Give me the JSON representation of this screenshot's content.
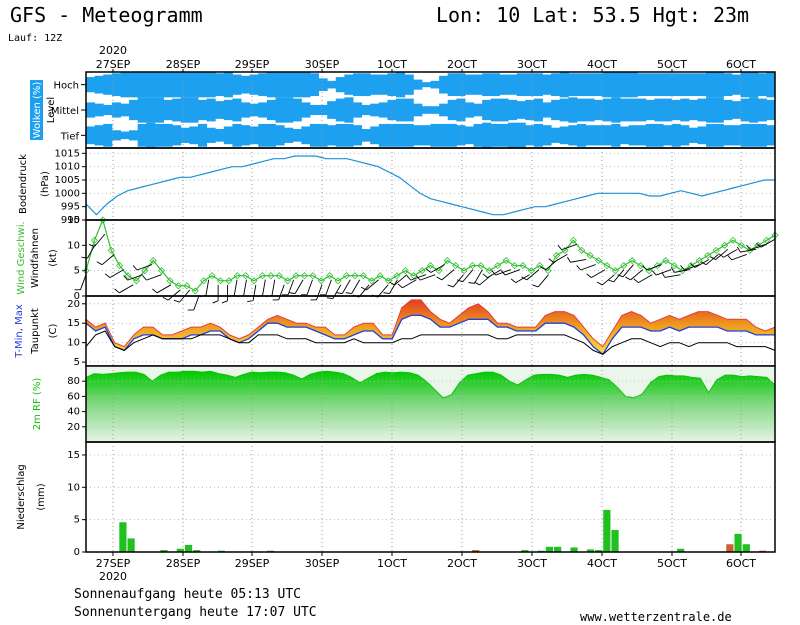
{
  "header": {
    "title": "GFS - Meteogramm",
    "location": "Lon: 10 Lat: 53.5 Hgt: 23m",
    "run": "Lauf: 12Z"
  },
  "footer": {
    "sunrise": "Sonnenaufgang heute 05:13 UTC",
    "sunset": "Sonnenuntergang heute 17:07 UTC",
    "site": "www.wetterzentrale.de"
  },
  "time_axis": {
    "year": "2020",
    "dates": [
      "27SEP",
      "28SEP",
      "29SEP",
      "30SEP",
      "1OCT",
      "2OCT",
      "3OCT",
      "4OCT",
      "5OCT",
      "6OCT"
    ]
  },
  "colors": {
    "cloud": "#1ea0f0",
    "pressure": "#1e90d8",
    "wind": "#30c030",
    "tmax": "#e04040",
    "tmin": "#2040e0",
    "rh": "#10c010",
    "precip": "#20c020",
    "precip_conv": "#d06030"
  },
  "chart_data": [
    {
      "type": "heatmap",
      "panel": "clouds",
      "ylabel_main": "Wolken (%)",
      "ylabel_sub": "Level",
      "rows": [
        "Hoch",
        "Mittel",
        "Tief"
      ],
      "note": "cloud coverage per time step (0-1), 3-hourly",
      "hoch": [
        0.6,
        0.7,
        0.8,
        0.9,
        1,
        1,
        1,
        1,
        1,
        1,
        1,
        1,
        1,
        1,
        1,
        0.9,
        1,
        0.8,
        0.7,
        0.8,
        0.9,
        1,
        1,
        1,
        1,
        1,
        0.9,
        0.5,
        0.3,
        0.6,
        0.8,
        0.9,
        0.9,
        0.8,
        0.8,
        0.9,
        1,
        0.8,
        0.4,
        0.2,
        0.3,
        0.7,
        0.9,
        0.9,
        0.8,
        0.8,
        0.9,
        0.9,
        0.8,
        0.8,
        0.9,
        0.9,
        0.9,
        0.8,
        0.9,
        1,
        0.9,
        0.9,
        0.9,
        0.9,
        1,
        1,
        1,
        1,
        0.9,
        0.9,
        0.9,
        0.9,
        0.9,
        0.9,
        0.9,
        0.9,
        1,
        1,
        0.9,
        0.8,
        1,
        1,
        0.9,
        1
      ],
      "mittel": [
        0.6,
        0.5,
        0.4,
        0.6,
        0.5,
        0.8,
        1,
        1,
        1,
        0.8,
        0.9,
        1,
        1,
        0.8,
        0.9,
        0.7,
        0.8,
        0.9,
        0.6,
        0.5,
        0.6,
        0.8,
        1,
        1,
        0.9,
        0.6,
        0.4,
        0.4,
        0.7,
        0.9,
        1,
        0.6,
        0.4,
        0.5,
        0.6,
        0.8,
        0.9,
        0.9,
        0.5,
        0.3,
        0.3,
        0.5,
        0.8,
        0.9,
        0.6,
        0.5,
        0.8,
        0.9,
        0.9,
        0.8,
        0.7,
        0.8,
        0.9,
        0.6,
        0.8,
        0.9,
        1,
        0.9,
        0.9,
        0.8,
        0.9,
        1,
        0.9,
        0.9,
        0.9,
        0.8,
        0.9,
        0.9,
        0.8,
        0.9,
        0.8,
        0.9,
        1,
        1,
        0.8,
        0.7,
        0.9,
        1,
        0.9,
        0.8
      ],
      "tief": [
        0.7,
        0.8,
        0.9,
        0.4,
        0.3,
        0.4,
        0.9,
        1,
        0.9,
        0.9,
        0.8,
        0.6,
        0.7,
        0.9,
        0.6,
        0.5,
        0.7,
        0.9,
        0.8,
        0.7,
        0.9,
        0.9,
        0.8,
        0.6,
        0.5,
        0.7,
        0.9,
        0.9,
        0.8,
        0.9,
        0.9,
        0.8,
        0.5,
        0.7,
        0.9,
        0.9,
        0.9,
        0.9,
        0.8,
        0.8,
        0.9,
        0.9,
        0.9,
        0.8,
        0.7,
        0.9,
        1,
        0.9,
        0.9,
        1,
        1,
        0.8,
        0.9,
        0.8,
        0.6,
        0.7,
        0.8,
        0.9,
        0.8,
        0.8,
        0.8,
        0.9,
        0.7,
        0.8,
        0.8,
        0.9,
        0.9,
        0.8,
        0.9,
        0.8,
        0.6,
        0.7,
        0.9,
        0.9,
        0.8,
        0.8,
        0.9,
        0.9,
        0.9,
        0.8
      ]
    },
    {
      "type": "line",
      "panel": "pressure",
      "ylabel_main": "Bodendruck",
      "ylabel_sub": "(hPa)",
      "ylim": [
        990,
        1017
      ],
      "yticks": [
        990,
        995,
        1000,
        1005,
        1010,
        1015
      ],
      "values": [
        996,
        992,
        996,
        999,
        1001,
        1002,
        1003,
        1004,
        1005,
        1006,
        1006,
        1007,
        1008,
        1009,
        1010,
        1010,
        1011,
        1012,
        1013,
        1013,
        1014,
        1014,
        1014,
        1013,
        1013,
        1013,
        1012,
        1011,
        1010,
        1008,
        1006,
        1003,
        1000,
        998,
        997,
        996,
        995,
        994,
        993,
        992,
        992,
        993,
        994,
        995,
        995,
        996,
        997,
        998,
        999,
        1000,
        1000,
        1000,
        1000,
        1000,
        999,
        999,
        1000,
        1001,
        1000,
        999,
        1000,
        1001,
        1002,
        1003,
        1004,
        1005,
        1005
      ]
    },
    {
      "type": "line",
      "panel": "wind",
      "ylabel_main": "Wind Geschwi.",
      "ylabel_sub": "Windfahnen",
      "ylabel_unit": "(kt)",
      "ylim": [
        0,
        15
      ],
      "yticks": [
        0,
        5,
        10,
        15
      ],
      "values": [
        5,
        11,
        15,
        9,
        6,
        4,
        3,
        5,
        7,
        5,
        3,
        2,
        2,
        1,
        3,
        4,
        3,
        3,
        4,
        4,
        3,
        4,
        4,
        4,
        3,
        4,
        4,
        4,
        3,
        4,
        3,
        4,
        4,
        4,
        3,
        4,
        3,
        4,
        5,
        4,
        5,
        6,
        5,
        7,
        6,
        5,
        6,
        6,
        5,
        6,
        7,
        6,
        6,
        5,
        6,
        5,
        8,
        9,
        11,
        9,
        8,
        7,
        6,
        5,
        6,
        7,
        6,
        5,
        6,
        7,
        6,
        5,
        6,
        7,
        8,
        9,
        10,
        11,
        10,
        9,
        10,
        11,
        12
      ],
      "barb_dirs": [
        200,
        210,
        220,
        230,
        240,
        240,
        250,
        250,
        250,
        240,
        230,
        220,
        200,
        190,
        180,
        180,
        190,
        190,
        190,
        190,
        190,
        200,
        200,
        210,
        200,
        200,
        200,
        210,
        210,
        210,
        220,
        230,
        220,
        210,
        230,
        240,
        250,
        250,
        240,
        230,
        220,
        220,
        210,
        230,
        240,
        250,
        250,
        240,
        230,
        220,
        230,
        240,
        250,
        260,
        250,
        240,
        230,
        220,
        220,
        230,
        240,
        250,
        250,
        260,
        260,
        250,
        240,
        230,
        230,
        240,
        250,
        260,
        250,
        240
      ]
    },
    {
      "type": "area",
      "panel": "temperature",
      "ylabel_main": "T-Min, Max",
      "ylabel_sub": "Taupunkt",
      "ylabel_unit": "(C)",
      "ylim": [
        4,
        22
      ],
      "yticks": [
        5,
        10,
        15,
        20
      ],
      "tmax": [
        16,
        14,
        15,
        10,
        9,
        12,
        14,
        14,
        12,
        12,
        13,
        14,
        14,
        15,
        14,
        12,
        11,
        12,
        14,
        16,
        17,
        16,
        15,
        15,
        14,
        14,
        12,
        12,
        14,
        15,
        15,
        12,
        12,
        19,
        21,
        21,
        18,
        16,
        15,
        17,
        19,
        20,
        18,
        15,
        15,
        14,
        14,
        14,
        17,
        18,
        18,
        17,
        14,
        11,
        9,
        13,
        17,
        18,
        17,
        15,
        16,
        17,
        16,
        17,
        18,
        18,
        17,
        16,
        16,
        16,
        14,
        13,
        14
      ],
      "tmin": [
        15,
        13,
        14,
        9,
        8,
        11,
        12,
        12,
        11,
        11,
        11,
        12,
        12,
        13,
        13,
        11,
        10,
        11,
        13,
        15,
        15,
        14,
        14,
        14,
        13,
        12,
        11,
        11,
        12,
        13,
        13,
        11,
        11,
        16,
        17,
        17,
        16,
        14,
        14,
        15,
        16,
        16,
        16,
        14,
        14,
        13,
        13,
        13,
        15,
        15,
        15,
        14,
        12,
        9,
        7,
        11,
        14,
        14,
        14,
        13,
        13,
        14,
        13,
        14,
        14,
        14,
        14,
        13,
        13,
        13,
        12,
        12,
        12
      ],
      "dewpoint": [
        9,
        12,
        13,
        9,
        8,
        10,
        11,
        12,
        11,
        11,
        11,
        11,
        12,
        12,
        12,
        11,
        10,
        10,
        12,
        12,
        12,
        11,
        11,
        11,
        10,
        10,
        10,
        10,
        11,
        10,
        10,
        10,
        10,
        11,
        11,
        12,
        12,
        12,
        12,
        12,
        12,
        12,
        12,
        11,
        11,
        12,
        12,
        12,
        12,
        12,
        12,
        11,
        10,
        8,
        7,
        9,
        10,
        11,
        11,
        10,
        9,
        10,
        10,
        9,
        10,
        10,
        10,
        10,
        9,
        9,
        9,
        9,
        8
      ]
    },
    {
      "type": "area",
      "panel": "humidity",
      "ylabel_main": "2m RF (%)",
      "ylim": [
        0,
        100
      ],
      "yticks": [
        20,
        40,
        60,
        80
      ],
      "values": [
        85,
        90,
        89,
        90,
        91,
        92,
        92,
        89,
        80,
        88,
        92,
        92,
        93,
        93,
        92,
        93,
        90,
        88,
        85,
        89,
        92,
        91,
        92,
        92,
        91,
        88,
        83,
        89,
        92,
        93,
        92,
        90,
        85,
        78,
        84,
        90,
        92,
        91,
        92,
        91,
        88,
        80,
        69,
        58,
        62,
        78,
        88,
        90,
        92,
        92,
        88,
        80,
        75,
        82,
        88,
        89,
        89,
        88,
        85,
        88,
        89,
        88,
        85,
        82,
        72,
        60,
        58,
        63,
        78,
        86,
        88,
        87,
        87,
        85,
        84,
        65,
        82,
        88,
        88,
        86,
        87,
        86,
        85,
        75
      ]
    },
    {
      "type": "bar",
      "panel": "precipitation",
      "ylabel_main": "Niederschlag",
      "ylabel_unit": "(mm)",
      "ylim": [
        0,
        17
      ],
      "yticks": [
        0,
        5,
        10,
        15
      ],
      "bars": [
        {
          "x": 4,
          "value": 4.6,
          "conv": false
        },
        {
          "x": 5,
          "value": 2.1,
          "conv": false
        },
        {
          "x": 9,
          "value": 0.3,
          "conv": false
        },
        {
          "x": 11,
          "value": 0.5,
          "conv": false
        },
        {
          "x": 12,
          "value": 1.1,
          "conv": false
        },
        {
          "x": 13,
          "value": 0.3,
          "conv": false
        },
        {
          "x": 16,
          "value": 0.2,
          "conv": false
        },
        {
          "x": 22,
          "value": 0.2,
          "conv": false
        },
        {
          "x": 47,
          "value": 0.3,
          "conv": true
        },
        {
          "x": 53,
          "value": 0.3,
          "conv": false
        },
        {
          "x": 55,
          "value": 0.2,
          "conv": false
        },
        {
          "x": 56,
          "value": 0.8,
          "conv": false
        },
        {
          "x": 57,
          "value": 0.8,
          "conv": false
        },
        {
          "x": 59,
          "value": 0.7,
          "conv": false
        },
        {
          "x": 61,
          "value": 0.4,
          "conv": false
        },
        {
          "x": 62,
          "value": 0.3,
          "conv": false
        },
        {
          "x": 63,
          "value": 6.5,
          "conv": false
        },
        {
          "x": 64,
          "value": 3.4,
          "conv": false
        },
        {
          "x": 72,
          "value": 0.5,
          "conv": false
        },
        {
          "x": 78,
          "value": 1.2,
          "conv": true
        },
        {
          "x": 79,
          "value": 2.8,
          "conv": false
        },
        {
          "x": 80,
          "value": 1.2,
          "conv": false
        },
        {
          "x": 82,
          "value": 0.2,
          "conv": true
        }
      ]
    }
  ]
}
